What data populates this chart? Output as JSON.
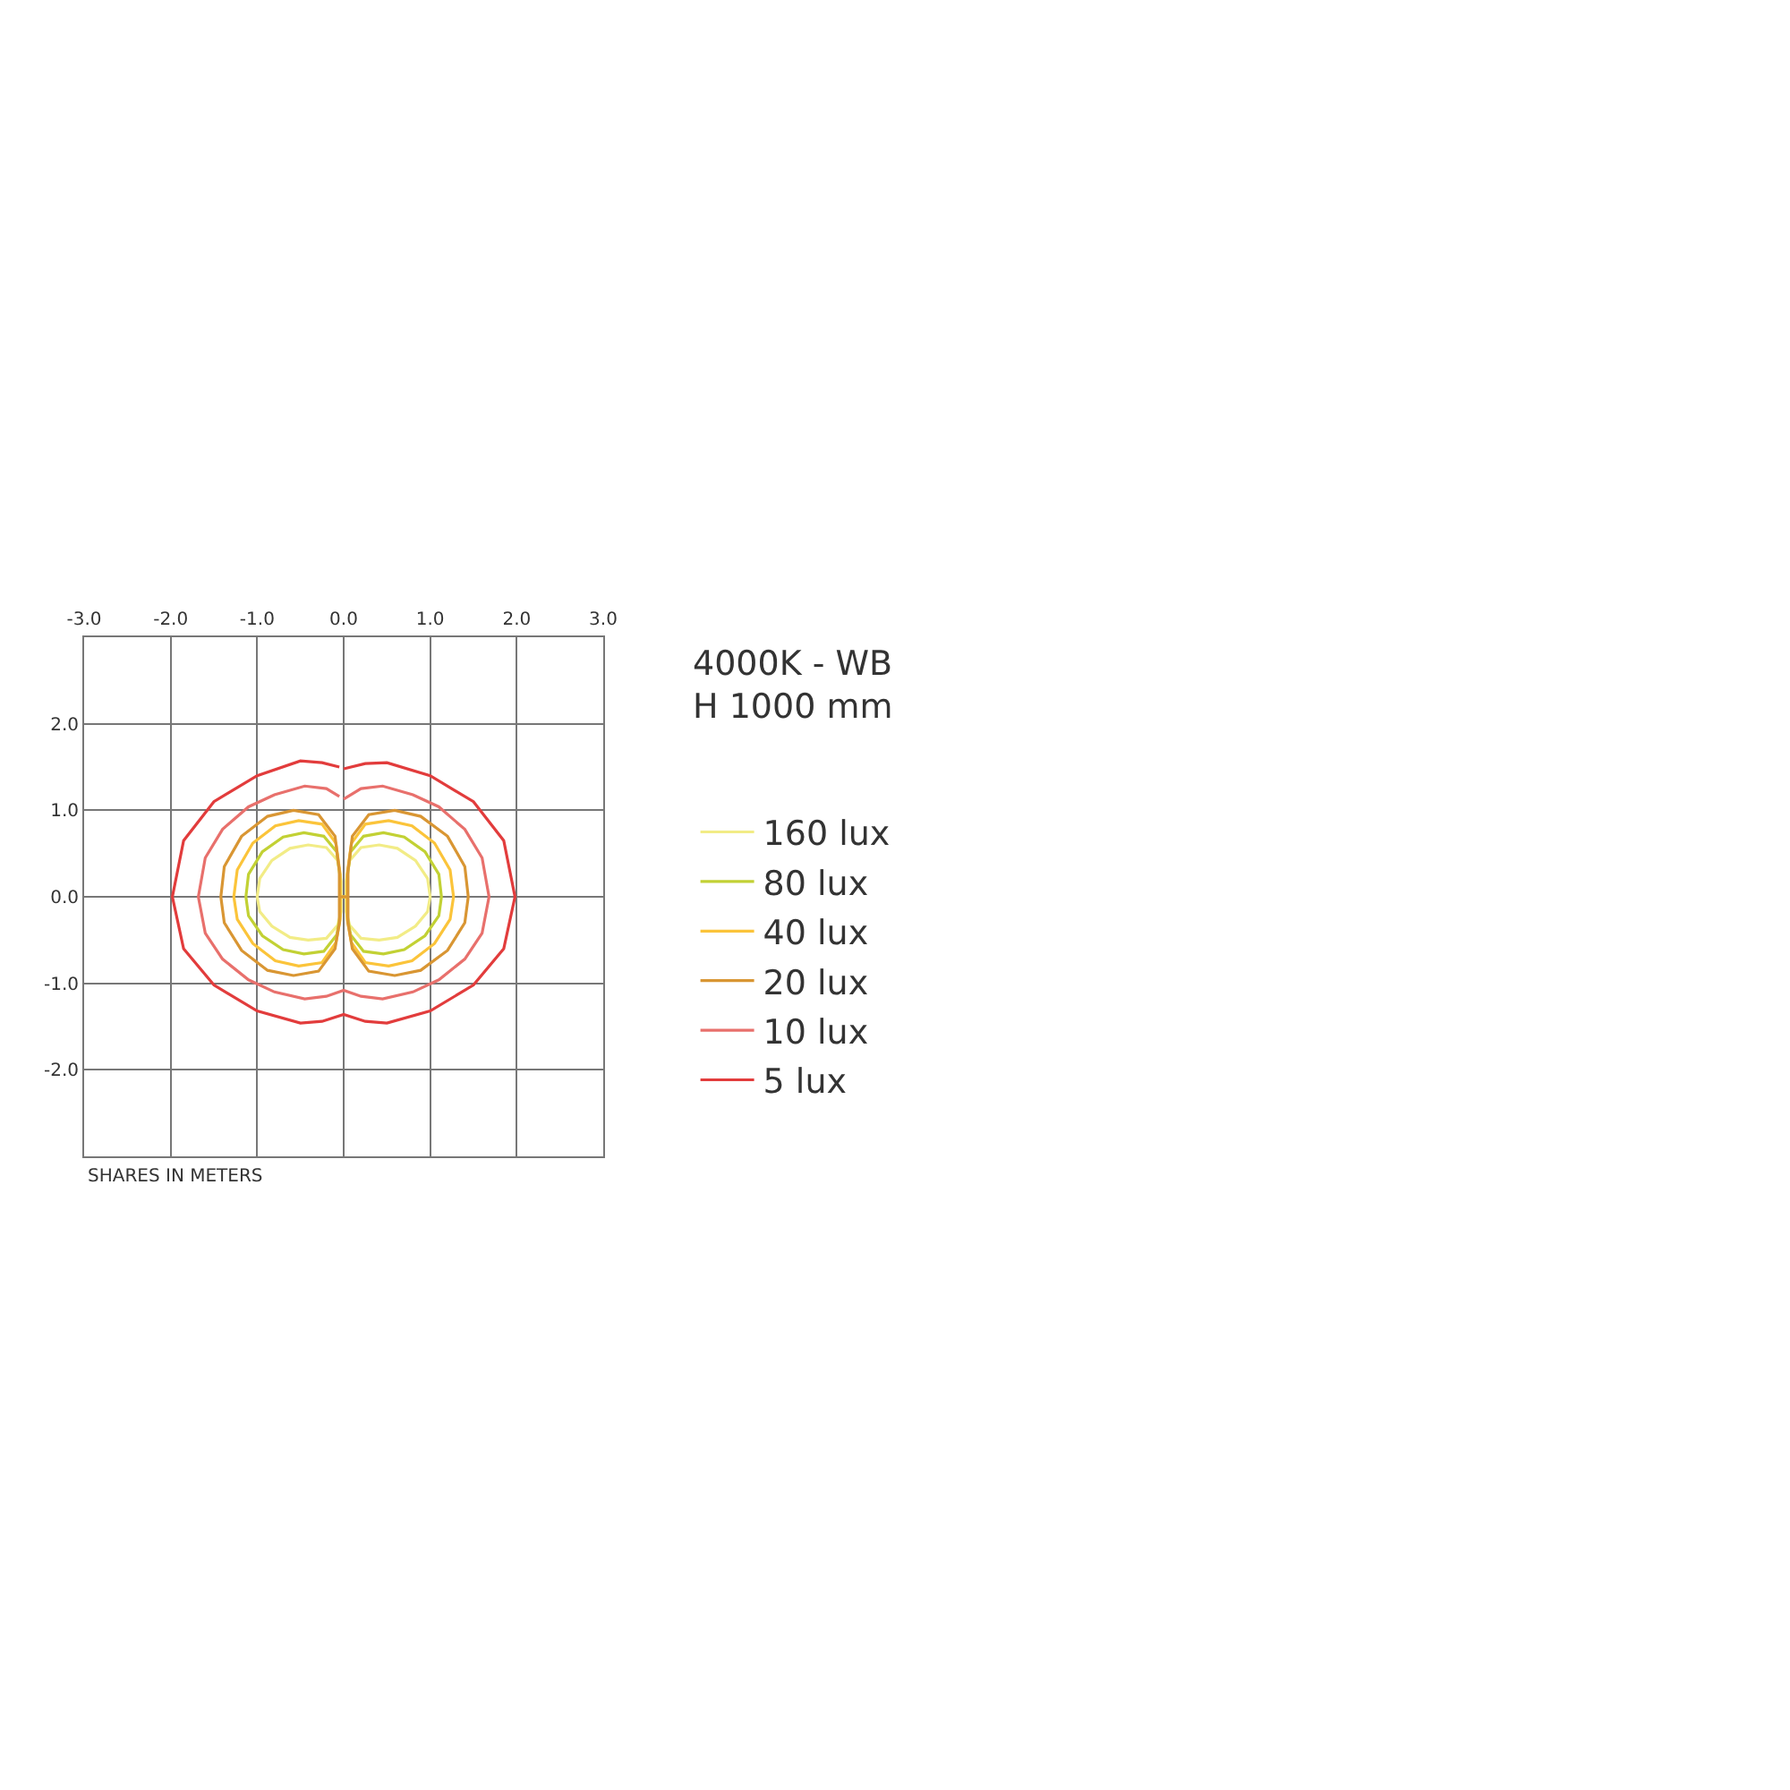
{
  "chart_data": {
    "type": "line",
    "title": "4000K - WB",
    "subtitle": "H 1000 mm",
    "xlabel": "SHARES IN METERS",
    "xlim": [
      -3,
      3
    ],
    "ylim": [
      -3,
      3
    ],
    "xticks": [
      {
        "value": -3,
        "label": "-3.0"
      },
      {
        "value": -2,
        "label": "-2.0"
      },
      {
        "value": -1,
        "label": "-1.0"
      },
      {
        "value": 0,
        "label": "0.0"
      },
      {
        "value": 1,
        "label": "1.0"
      },
      {
        "value": 2,
        "label": "2.0"
      },
      {
        "value": 3,
        "label": "3.0"
      }
    ],
    "yticks": [
      {
        "value": -3,
        "label": null
      },
      {
        "value": -2,
        "label": "-2.0"
      },
      {
        "value": -1,
        "label": "-1.0"
      },
      {
        "value": 0,
        "label": "0.0"
      },
      {
        "value": 1,
        "label": "1.0"
      },
      {
        "value": 2,
        "label": "2.0"
      },
      {
        "value": 3,
        "label": null
      }
    ],
    "grid": true,
    "legend": "right",
    "marker": "none",
    "line_style": "solid",
    "series": [
      {
        "name": "160 lux",
        "color": "#f2ec86",
        "x": [
          0.03,
          0.03,
          0.07,
          0.2,
          0.41,
          0.62,
          0.83,
          0.97,
          1.0,
          0.97,
          0.83,
          0.62,
          0.41,
          0.2,
          0.07,
          0.03,
          0.03,
          -0.03,
          -0.03,
          -0.07,
          -0.2,
          -0.41,
          -0.62,
          -0.83,
          -0.97,
          -1.0,
          -0.97,
          -0.83,
          -0.62,
          -0.41,
          -0.2,
          -0.07,
          -0.03,
          -0.03
        ],
        "values": [
          0,
          0.18,
          0.42,
          0.57,
          0.6,
          0.56,
          0.42,
          0.21,
          0,
          -0.17,
          -0.34,
          -0.47,
          -0.5,
          -0.48,
          -0.33,
          -0.17,
          0,
          0,
          0.18,
          0.42,
          0.57,
          0.6,
          0.56,
          0.42,
          0.21,
          0,
          -0.17,
          -0.34,
          -0.47,
          -0.5,
          -0.48,
          -0.33,
          -0.17,
          0
        ]
      },
      {
        "name": "80 lux",
        "color": "#c2d134",
        "x": [
          0.04,
          0.04,
          0.08,
          0.23,
          0.46,
          0.7,
          0.94,
          1.1,
          1.13,
          1.1,
          0.94,
          0.7,
          0.46,
          0.23,
          0.08,
          0.04,
          0.04,
          -0.04,
          -0.04,
          -0.08,
          -0.23,
          -0.46,
          -0.7,
          -0.94,
          -1.1,
          -1.13,
          -1.1,
          -0.94,
          -0.7,
          -0.46,
          -0.23,
          -0.08,
          -0.04,
          -0.04
        ],
        "values": [
          0,
          0.22,
          0.52,
          0.7,
          0.74,
          0.69,
          0.52,
          0.26,
          0,
          -0.22,
          -0.45,
          -0.61,
          -0.66,
          -0.63,
          -0.44,
          -0.22,
          0,
          0,
          0.22,
          0.52,
          0.7,
          0.74,
          0.69,
          0.52,
          0.26,
          0,
          -0.22,
          -0.45,
          -0.61,
          -0.66,
          -0.63,
          -0.44,
          -0.22,
          0
        ]
      },
      {
        "name": "40 lux",
        "color": "#fbc43a",
        "x": [
          0.04,
          0.04,
          0.09,
          0.25,
          0.52,
          0.79,
          1.05,
          1.23,
          1.27,
          1.23,
          1.05,
          0.79,
          0.52,
          0.25,
          0.09,
          0.04,
          0.04,
          -0.04,
          -0.04,
          -0.09,
          -0.25,
          -0.52,
          -0.79,
          -1.05,
          -1.23,
          -1.27,
          -1.23,
          -1.05,
          -0.79,
          -0.52,
          -0.25,
          -0.09,
          -0.04,
          -0.04
        ],
        "values": [
          0,
          0.26,
          0.62,
          0.84,
          0.88,
          0.82,
          0.62,
          0.31,
          0,
          -0.26,
          -0.54,
          -0.74,
          -0.8,
          -0.76,
          -0.53,
          -0.26,
          0,
          0,
          0.26,
          0.62,
          0.84,
          0.88,
          0.82,
          0.62,
          0.31,
          0,
          -0.26,
          -0.54,
          -0.74,
          -0.8,
          -0.76,
          -0.53,
          -0.26,
          0
        ]
      },
      {
        "name": "20 lux",
        "color": "#d99633",
        "x": [
          0.05,
          0.05,
          0.1,
          0.29,
          0.59,
          0.89,
          1.2,
          1.4,
          1.44,
          1.4,
          1.2,
          0.89,
          0.59,
          0.29,
          0.1,
          0.05,
          0.05,
          -0.05,
          -0.05,
          -0.1,
          -0.29,
          -0.58,
          -0.88,
          -1.18,
          -1.38,
          -1.42,
          -1.38,
          -1.18,
          -0.88,
          -0.58,
          -0.29,
          -0.1,
          -0.05,
          -0.05
        ],
        "values": [
          0,
          0.3,
          0.7,
          0.95,
          1.0,
          0.93,
          0.7,
          0.35,
          0,
          -0.3,
          -0.62,
          -0.85,
          -0.91,
          -0.86,
          -0.6,
          -0.3,
          0,
          0,
          0.3,
          0.7,
          0.95,
          1.0,
          0.93,
          0.7,
          0.35,
          0,
          -0.3,
          -0.62,
          -0.85,
          -0.91,
          -0.86,
          -0.6,
          -0.3,
          0
        ]
      },
      {
        "name": "10 lux",
        "color": "#e8706c",
        "x": [
          0,
          0.2,
          0.45,
          0.8,
          1.1,
          1.4,
          1.6,
          1.68,
          1.6,
          1.4,
          1.1,
          0.8,
          0.45,
          0.2,
          0,
          -0.2,
          -0.45,
          -0.8,
          -1.1,
          -1.4,
          -1.6,
          -1.68,
          -1.6,
          -1.4,
          -1.1,
          -0.8,
          -0.45,
          -0.2,
          -0.05
        ],
        "values": [
          1.13,
          1.25,
          1.28,
          1.18,
          1.04,
          0.78,
          0.45,
          0,
          -0.42,
          -0.72,
          -0.96,
          -1.1,
          -1.18,
          -1.15,
          -1.08,
          -1.15,
          -1.18,
          -1.1,
          -0.96,
          -0.72,
          -0.42,
          0,
          0.45,
          0.78,
          1.04,
          1.18,
          1.28,
          1.25,
          1.16
        ]
      },
      {
        "name": "5 lux",
        "color": "#e23c3c",
        "x": [
          0,
          0.25,
          0.5,
          1.0,
          1.5,
          1.85,
          1.98,
          1.85,
          1.5,
          1.0,
          0.5,
          0.25,
          0,
          -0.25,
          -0.5,
          -1.0,
          -1.5,
          -1.85,
          -1.98,
          -1.85,
          -1.5,
          -1.0,
          -0.5,
          -0.25,
          -0.05
        ],
        "values": [
          1.48,
          1.54,
          1.55,
          1.4,
          1.1,
          0.65,
          0,
          -0.6,
          -1.02,
          -1.32,
          -1.46,
          -1.44,
          -1.36,
          -1.44,
          -1.46,
          -1.32,
          -1.02,
          -0.6,
          0,
          0.65,
          1.1,
          1.4,
          1.57,
          1.55,
          1.5
        ]
      }
    ]
  }
}
